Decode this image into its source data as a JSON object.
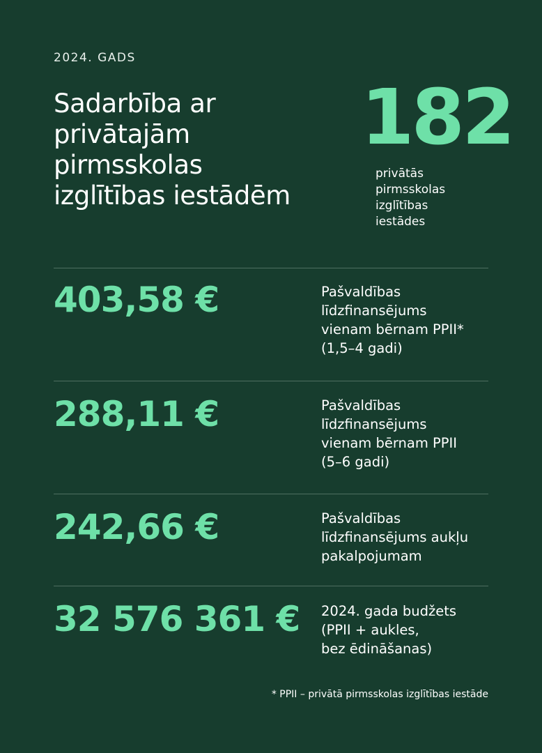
{
  "header": {
    "year_label": "2024. GADS",
    "title_lines": [
      "Sadarbība ar",
      "privātajām",
      "pirmsskolas",
      "izglītības iestādēm"
    ]
  },
  "highlight": {
    "value": "182",
    "label_lines": [
      "privātās",
      "pirmsskolas",
      "izglītības",
      "iestādes"
    ]
  },
  "rows": [
    {
      "value": "403,58 €",
      "desc_lines": [
        "Pašvaldības",
        "līdzfinansējums",
        "vienam bērnam PPII*",
        "(1,5–4 gadi)"
      ]
    },
    {
      "value": "288,11 €",
      "desc_lines": [
        "Pašvaldības",
        "līdzfinansējums",
        "vienam bērnam PPII",
        "(5–6 gadi)"
      ]
    },
    {
      "value": "242,66 €",
      "desc_lines": [
        "Pašvaldības",
        "līdzfinansējums aukļu",
        "pakalpojumam"
      ]
    },
    {
      "value": "32 576 361 €",
      "desc_lines": [
        "2024. gada budžets",
        "(PPII + aukles,",
        "bez ēdināšanas)"
      ]
    }
  ],
  "footnote": "* PPII – privātā pirmsskolas izglītības iestāde",
  "colors": {
    "background": "#173d2e",
    "accent": "#6ee0a8",
    "text": "#ffffff",
    "divider": "#4f6f61"
  }
}
